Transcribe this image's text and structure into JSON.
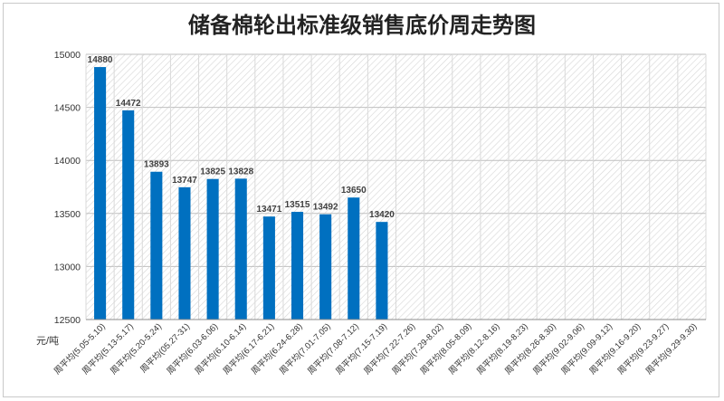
{
  "chart_data": {
    "type": "bar",
    "title": "储备棉轮出标准级销售底价周走势图",
    "ylabel": "元/吨",
    "xlabel": "",
    "ylim": [
      12500,
      15000
    ],
    "y_ticks": [
      12500,
      13000,
      13500,
      14000,
      14500,
      15000
    ],
    "categories": [
      "周平均(5.05-5.10)",
      "周平均(5.13-5.17)",
      "周平均(5.20-5.24)",
      "周平均(05.27-31)",
      "周平均(6.03-6.06)",
      "周平均(6.10-6.14)",
      "周平均(6.17-6.21)",
      "周平均(6.24-6.28)",
      "周平均(7.01-7.05)",
      "周平均(7.08-7.12)",
      "周平均(7.15-7.19)",
      "周平均(7.22-7.26)",
      "周平均(7.29-8.02)",
      "周平均(8.05-8.09)",
      "周平均(8.12-8.16)",
      "周平均(8.19-8.23)",
      "周平均(8.26-8.30)",
      "周平均(9.02-9.06)",
      "周平均(9.09-9.12)",
      "周平均(9.16-9.20)",
      "周平均(9.23-9.27)",
      "周平均(9.29-9.30)"
    ],
    "values": [
      14880,
      14472,
      13893,
      13747,
      13825,
      13828,
      13471,
      13515,
      13492,
      13650,
      13420,
      null,
      null,
      null,
      null,
      null,
      null,
      null,
      null,
      null,
      null,
      null
    ],
    "bar_color": "#0070c0",
    "plot_background": "diagonal hatch",
    "grid": true
  }
}
